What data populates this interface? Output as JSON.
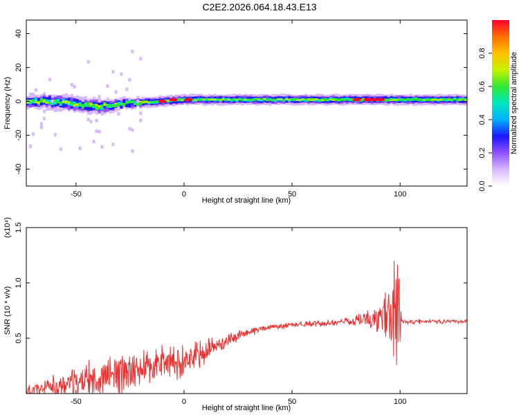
{
  "title": "C2E2.2026.064.18.43.E13",
  "colors": {
    "snr_line": "#e83030",
    "spectrogram_bg": "#ffffff",
    "colormap": [
      "#ffffff",
      "#d8b8ff",
      "#9050ff",
      "#1818ff",
      "#00b0ff",
      "#00e8c0",
      "#30e830",
      "#c8f000",
      "#ffc000",
      "#ff7000",
      "#ff0030"
    ]
  },
  "chart_data": [
    {
      "type": "heatmap",
      "name": "spectrogram",
      "xlabel": "Height of straight line (km)",
      "ylabel": "Frequency (Hz)",
      "xlim": [
        -73,
        131
      ],
      "ylim": [
        -50,
        48
      ],
      "xticks": [
        -50,
        0,
        50,
        100
      ],
      "yticks": [
        -40,
        -20,
        0,
        20,
        40
      ],
      "grid": false,
      "description_band": [
        {
          "x": -73,
          "center": 0,
          "width": 5
        },
        {
          "x": -60,
          "center": 0,
          "width": 6
        },
        {
          "x": -40,
          "center": -3,
          "width": 6
        },
        {
          "x": -25,
          "center": -1,
          "width": 4
        },
        {
          "x": -10,
          "center": 0,
          "width": 4
        },
        {
          "x": 0,
          "center": 1,
          "width": 4
        },
        {
          "x": 30,
          "center": 1,
          "width": 4
        },
        {
          "x": 60,
          "center": 1,
          "width": 4
        },
        {
          "x": 90,
          "center": 1,
          "width": 4
        },
        {
          "x": 100,
          "center": 1,
          "width": 4
        },
        {
          "x": 131,
          "center": 1,
          "width": 4
        }
      ],
      "peaks": [
        {
          "x": -10,
          "y": 0
        },
        {
          "x": -5,
          "y": 1
        },
        {
          "x": 2,
          "y": 1
        },
        {
          "x": 80,
          "y": 1
        },
        {
          "x": 85,
          "y": 1
        },
        {
          "x": 88,
          "y": 1
        },
        {
          "x": 91,
          "y": 1
        }
      ],
      "colorbar": {
        "label": "Normalized spectral amplitude",
        "range": [
          0.0,
          1.0
        ],
        "ticks": [
          "0.0",
          "0.2",
          "0.4",
          "0.6",
          "0.8"
        ]
      }
    },
    {
      "type": "line",
      "name": "snr",
      "xlabel": "Height of straight line (km)",
      "ylabel": "SNR (10 * v/v)",
      "exponent_label": "(x10⁴)",
      "xlim": [
        -73,
        131
      ],
      "ylim": [
        0.0,
        1.5
      ],
      "xticks": [
        -50,
        0,
        50,
        100
      ],
      "yticks": [
        0.5,
        1.0,
        1.5
      ],
      "ytick_labels": [
        "0.5",
        "1.0",
        "1.5"
      ],
      "grid": false,
      "trend": {
        "x": [
          -73,
          -60,
          -50,
          -40,
          -30,
          -20,
          -10,
          0,
          10,
          20,
          30,
          40,
          50,
          60,
          70,
          80,
          90,
          95,
          100,
          110,
          120,
          131
        ],
        "y": [
          0.02,
          0.06,
          0.1,
          0.14,
          0.18,
          0.22,
          0.26,
          0.3,
          0.38,
          0.48,
          0.56,
          0.6,
          0.62,
          0.63,
          0.64,
          0.66,
          0.68,
          0.7,
          0.65,
          0.65,
          0.65,
          0.65
        ]
      },
      "noise_amplitude": {
        "x": [
          -73,
          -40,
          -20,
          0,
          20,
          40,
          75,
          88,
          95,
          99,
          101,
          131
        ],
        "amp": [
          0.08,
          0.2,
          0.24,
          0.18,
          0.08,
          0.03,
          0.04,
          0.12,
          0.3,
          0.8,
          0.03,
          0.02
        ]
      }
    }
  ]
}
